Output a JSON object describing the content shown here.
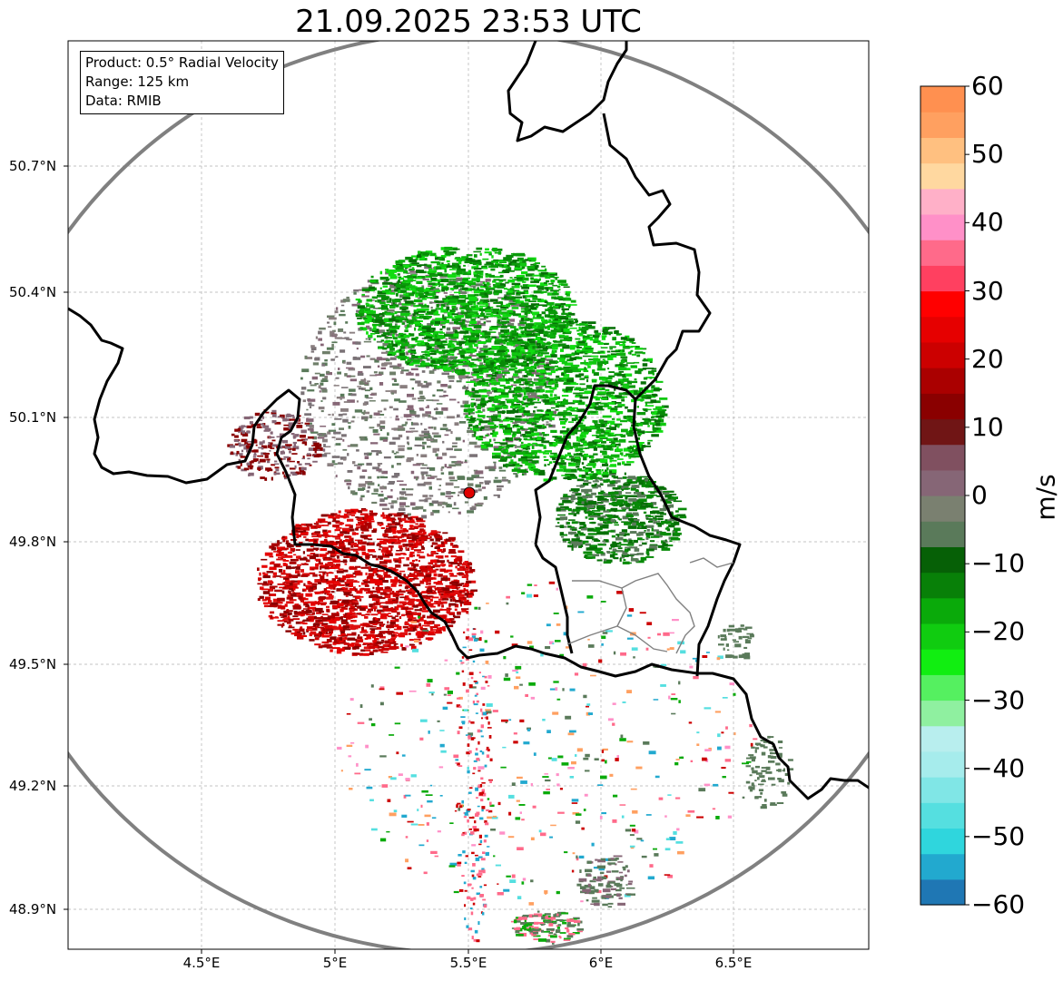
{
  "title": "21.09.2025 23:53 UTC",
  "info": {
    "product": "Product: 0.5° Radial Velocity",
    "range": "Range: 125 km",
    "data": "Data: RMIB"
  },
  "lat_ticks": [
    "50.7°N",
    "50.4°N",
    "50.1°N",
    "49.8°N",
    "49.5°N",
    "49.2°N",
    "48.9°N"
  ],
  "lon_ticks": [
    "4.5°E",
    "5°E",
    "5.5°E",
    "6°E",
    "6.5°E"
  ],
  "colorbar": {
    "label": "m/s",
    "ticks": [
      "60",
      "50",
      "40",
      "30",
      "20",
      "10",
      "0",
      "−10",
      "−20",
      "−30",
      "−40",
      "−50",
      "−60"
    ],
    "min": -60,
    "max": 60,
    "colors": [
      "#1f77b4",
      "#22a9cf",
      "#2fd6dd",
      "#55dfe0",
      "#80e6e6",
      "#a6ecec",
      "#b8eeee",
      "#8ff0a0",
      "#55f060",
      "#11ee11",
      "#10cc10",
      "#0aaa0a",
      "#088008",
      "#066006",
      "#5a7a5a",
      "#7a8070",
      "#866676",
      "#805060",
      "#701515",
      "#8a0000",
      "#aa0000",
      "#cc0000",
      "#e60000",
      "#ff0000",
      "#ff4060",
      "#ff6a8a",
      "#ff90c8",
      "#ffb0c8",
      "#ffd8a0",
      "#ffc080",
      "#ffa060",
      "#ff9050"
    ]
  },
  "radar": {
    "site_lat": 49.914,
    "site_lon": 5.505,
    "range_km": 125
  },
  "colors": {
    "border": "#000000",
    "range_ring": "#808080",
    "grid": "#b0b0b0",
    "site_marker": "#e00000"
  }
}
